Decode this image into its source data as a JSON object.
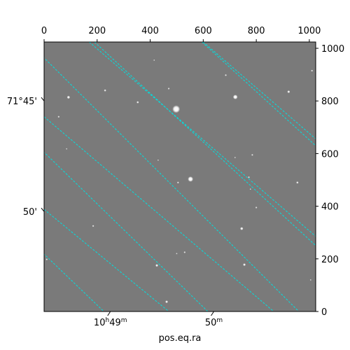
{
  "chart_data": {
    "type": "astronomical-image",
    "title": "",
    "xlabel": "pos.eq.ra",
    "ylabel": "",
    "pixel_axes": {
      "xlim": [
        0,
        1024
      ],
      "ylim": [
        0,
        1024
      ],
      "top_ticks": [
        0,
        200,
        400,
        600,
        800,
        1000
      ],
      "right_ticks": [
        0,
        200,
        400,
        600,
        800,
        1000
      ]
    },
    "world_ticks": {
      "ra_bottom": [
        {
          "label": "10h49m",
          "x": 250
        },
        {
          "label": "50m",
          "x": 640
        }
      ],
      "dec_left": [
        {
          "label": "71°45'",
          "y": 800
        },
        {
          "label": "50'",
          "y": 380
        }
      ]
    },
    "grid": {
      "on": true,
      "style": "dashed",
      "color": "#00e0e0",
      "ra_lines": [
        [
          [
            -60,
            1024
          ],
          [
            1100,
            -140
          ]
        ],
        [
          [
            -60,
            664
          ],
          [
            760,
            -140
          ]
        ],
        [
          [
            -60,
            276
          ],
          [
            370,
            -140
          ]
        ],
        [
          [
            190,
            1024
          ],
          [
            1100,
            180
          ]
        ],
        [
          [
            595,
            1024
          ],
          [
            1100,
            560
          ]
        ]
      ],
      "dec_lines": [
        [
          [
            -60,
            990
          ],
          [
            120,
            1100
          ]
        ],
        [
          [
            170,
            1024
          ],
          [
            1100,
            220
          ]
        ],
        [
          [
            0,
            740
          ],
          [
            1100,
            -200
          ]
        ],
        [
          [
            0,
            388
          ],
          [
            640,
            -140
          ]
        ],
        [
          [
            600,
            1024
          ],
          [
            1100,
            590
          ]
        ]
      ]
    },
    "stars": [
      {
        "x": 498,
        "y": 769,
        "r": 10,
        "brightness": 1.0
      },
      {
        "x": 552,
        "y": 503,
        "r": 7,
        "brightness": 1.0
      },
      {
        "x": 721,
        "y": 815,
        "r": 6,
        "brightness": 1.0
      },
      {
        "x": 92,
        "y": 814,
        "r": 4,
        "brightness": 0.95
      },
      {
        "x": 353,
        "y": 795,
        "r": 3,
        "brightness": 0.9
      },
      {
        "x": 230,
        "y": 840,
        "r": 3,
        "brightness": 0.85
      },
      {
        "x": 470,
        "y": 847,
        "r": 2.5,
        "brightness": 0.8
      },
      {
        "x": 685,
        "y": 898,
        "r": 2.5,
        "brightness": 0.85
      },
      {
        "x": 922,
        "y": 835,
        "r": 3.5,
        "brightness": 0.95
      },
      {
        "x": 1010,
        "y": 915,
        "r": 2.5,
        "brightness": 0.85
      },
      {
        "x": 55,
        "y": 740,
        "r": 2.5,
        "brightness": 0.8
      },
      {
        "x": 785,
        "y": 595,
        "r": 2.5,
        "brightness": 0.8
      },
      {
        "x": 720,
        "y": 585,
        "r": 2,
        "brightness": 0.75
      },
      {
        "x": 772,
        "y": 510,
        "r": 2.5,
        "brightness": 0.8
      },
      {
        "x": 505,
        "y": 490,
        "r": 2.5,
        "brightness": 0.85
      },
      {
        "x": 955,
        "y": 490,
        "r": 3,
        "brightness": 0.9
      },
      {
        "x": 778,
        "y": 465,
        "r": 2,
        "brightness": 0.75
      },
      {
        "x": 800,
        "y": 395,
        "r": 2.5,
        "brightness": 0.8
      },
      {
        "x": 745,
        "y": 315,
        "r": 4,
        "brightness": 0.95
      },
      {
        "x": 185,
        "y": 325,
        "r": 2.5,
        "brightness": 0.85
      },
      {
        "x": 530,
        "y": 225,
        "r": 2.5,
        "brightness": 0.8
      },
      {
        "x": 500,
        "y": 220,
        "r": 2,
        "brightness": 0.75
      },
      {
        "x": 425,
        "y": 175,
        "r": 3.5,
        "brightness": 0.95
      },
      {
        "x": 755,
        "y": 178,
        "r": 3.5,
        "brightness": 0.95
      },
      {
        "x": 462,
        "y": 37,
        "r": 3.5,
        "brightness": 0.95
      },
      {
        "x": 10,
        "y": 198,
        "r": 2.5,
        "brightness": 0.8
      },
      {
        "x": 1005,
        "y": 120,
        "r": 2,
        "brightness": 0.75
      },
      {
        "x": 430,
        "y": 575,
        "r": 2,
        "brightness": 0.7
      },
      {
        "x": 85,
        "y": 618,
        "r": 2,
        "brightness": 0.7
      },
      {
        "x": 415,
        "y": 955,
        "r": 2,
        "brightness": 0.7
      }
    ]
  }
}
